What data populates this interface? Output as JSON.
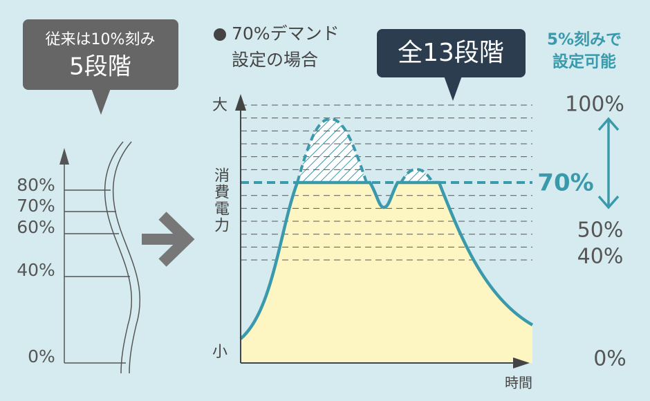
{
  "left_panel": {
    "bubble": {
      "line1": "従来は10%刻み",
      "line2": "5段階"
    },
    "levels": [
      "80%",
      "70%",
      "60%",
      "40%",
      "0%"
    ]
  },
  "right_panel": {
    "note": {
      "line1": "70%デマンド",
      "line2": "設定の場合"
    },
    "bubble": "全13段階",
    "step_note": {
      "line1": "5%刻みで",
      "line2": "設定可能"
    },
    "y_axis": {
      "top": "大",
      "label": "消費電力",
      "bottom": "小"
    },
    "x_axis": "時間",
    "levels": [
      "100%",
      "70%",
      "50%",
      "40%",
      "0%"
    ]
  }
}
